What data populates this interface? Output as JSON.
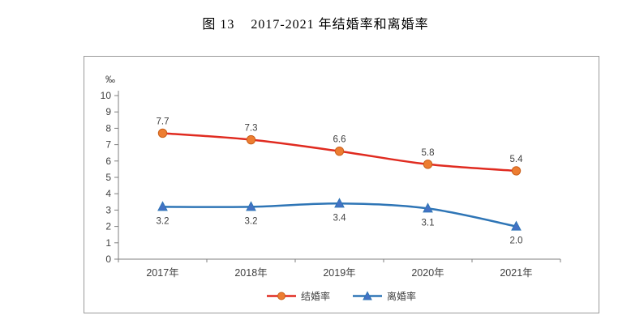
{
  "caption": {
    "figure_no": "图 13",
    "text": "2017-2021 年结婚率和离婚率"
  },
  "chart_data": {
    "type": "line",
    "title": "2017-2021 年结婚率和离婚率",
    "unit_label": "‰",
    "categories": [
      "2017年",
      "2018年",
      "2019年",
      "2020年",
      "2021年"
    ],
    "series": [
      {
        "name": "结婚率",
        "values": [
          7.7,
          7.3,
          6.6,
          5.8,
          5.4
        ],
        "color": "#e02b20",
        "marker": "circle",
        "marker_color": "#ED7D31",
        "marker_stroke": "#c95f1a",
        "label_position": "above"
      },
      {
        "name": "离婚率",
        "values": [
          3.2,
          3.2,
          3.4,
          3.1,
          2.0
        ],
        "color": "#2E75B6",
        "marker": "triangle",
        "marker_color": "#4472C4",
        "marker_stroke": "#2E75B6",
        "label_position": "below"
      }
    ],
    "ylim": [
      0,
      10
    ],
    "ytick_step": 1,
    "grid": false,
    "smoothed_lines": true,
    "legend_position": "bottom"
  }
}
